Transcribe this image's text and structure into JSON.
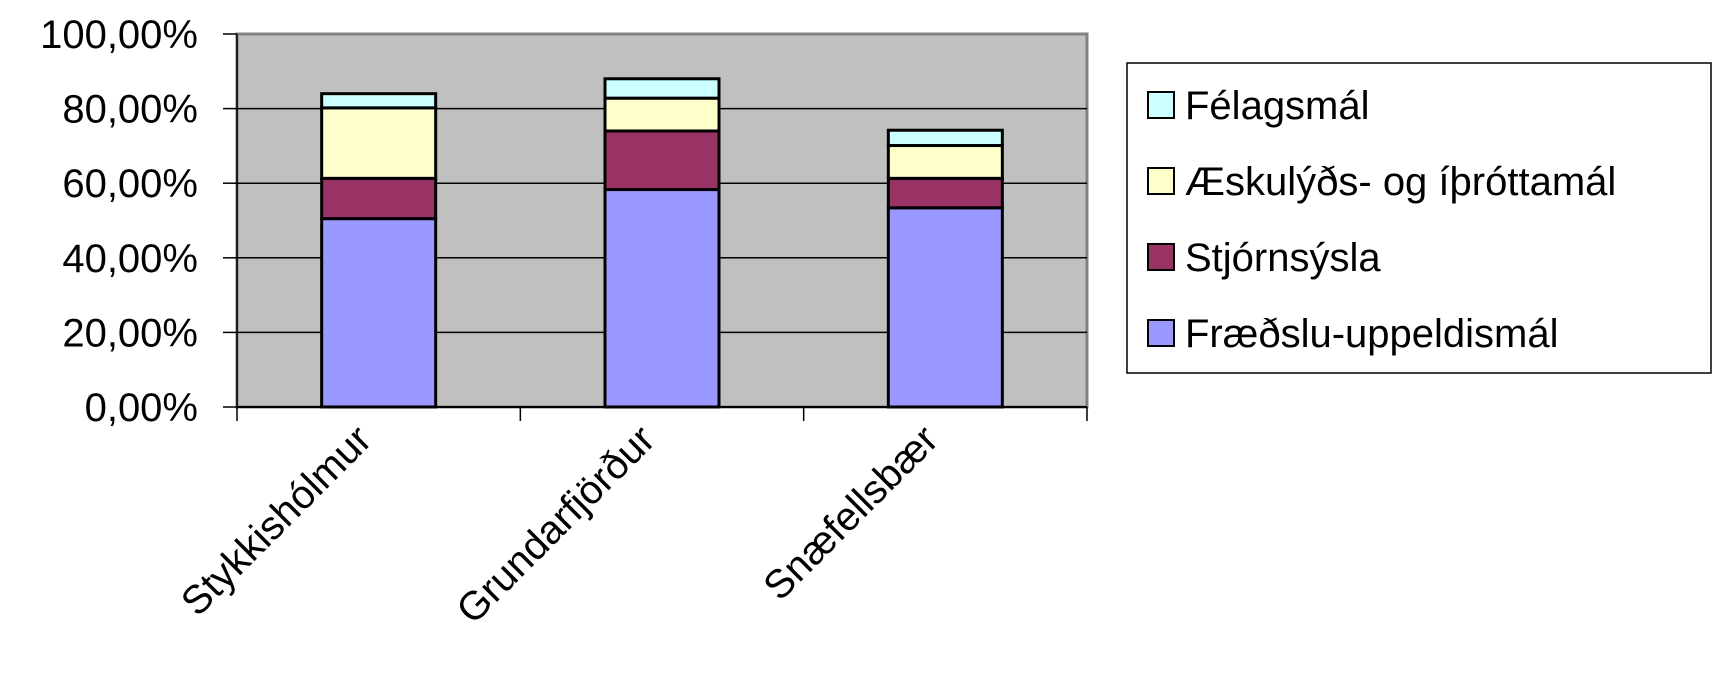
{
  "chart_data": {
    "type": "bar",
    "stacked": true,
    "categories": [
      "Stykkishólmur",
      "Grundarfjörður",
      "Snæfellsbær"
    ],
    "series": [
      {
        "name": "Fræðslu-uppeldismál",
        "color": "#9999ff",
        "values": [
          50.5,
          58.3,
          53.4
        ]
      },
      {
        "name": "Stjórnsýsla",
        "color": "#993366",
        "values": [
          10.8,
          15.7,
          7.9
        ]
      },
      {
        "name": "Æskulýðs- og íþróttamál",
        "color": "#ffffcc",
        "values": [
          18.9,
          8.8,
          8.8
        ]
      },
      {
        "name": "Félagsmál",
        "color": "#ccffff",
        "values": [
          3.8,
          5.2,
          4.1
        ]
      }
    ],
    "y_ticks": [
      "0,00%",
      "20,00%",
      "40,00%",
      "60,00%",
      "80,00%",
      "100,00%"
    ],
    "ylim": [
      0,
      100
    ],
    "grid": true,
    "plot_background": "#c0c0c0",
    "legend_position": "right",
    "legend_order": [
      "Félagsmál",
      "Æskulýðs- og íþróttamál",
      "Stjórnsýsla",
      "Fræðslu-uppeldismál"
    ]
  }
}
